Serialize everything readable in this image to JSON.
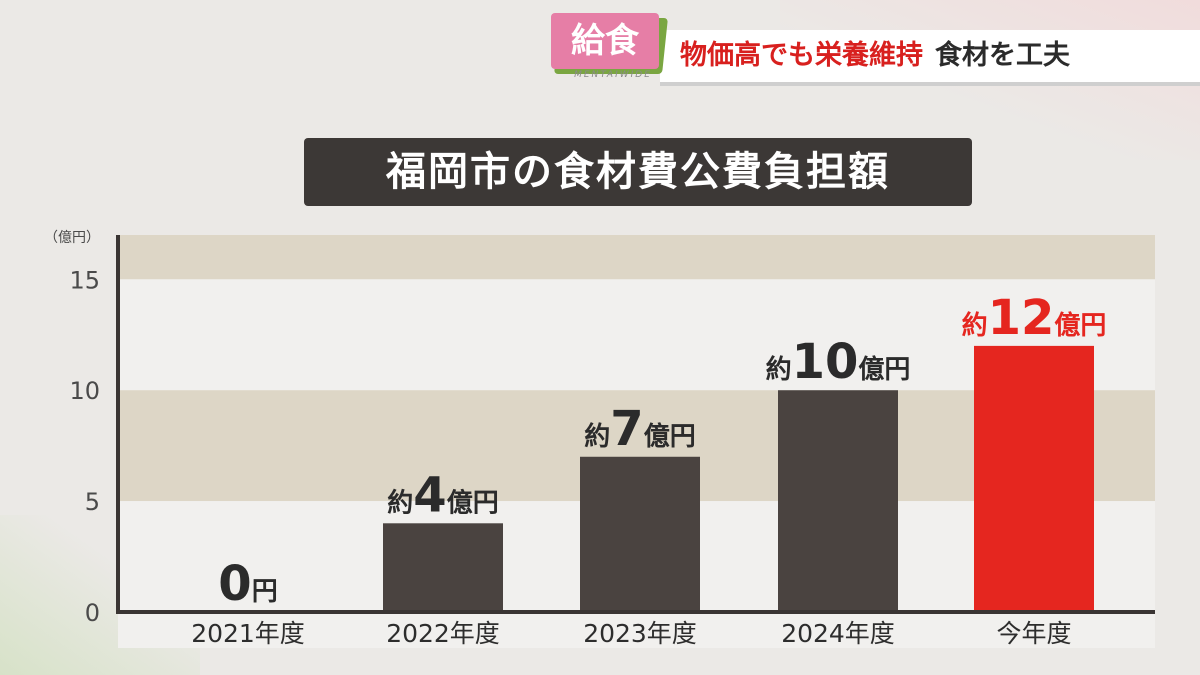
{
  "header": {
    "tag": "給食",
    "tag_sub": "MENTAIWIDE",
    "headline_red": "物価高でも栄養維持",
    "headline_dark": "食材を工夫"
  },
  "colors": {
    "bar": "#4a4340",
    "highlight": "#e5261f",
    "band_dark": "#ddd6c6",
    "band_light": "#f1f0ee"
  },
  "chart_data": {
    "type": "bar",
    "title": "福岡市の食材費公費負担額",
    "ylabel": "（億円）",
    "ylim": [
      0,
      17
    ],
    "yticks": [
      0,
      5,
      10,
      15
    ],
    "categories": [
      "2021年度",
      "2022年度",
      "2023年度",
      "2024年度",
      "今年度"
    ],
    "values": [
      0,
      4,
      7,
      10,
      12
    ],
    "highlight_index": 4,
    "data_labels": [
      {
        "prefix": "",
        "number": "0",
        "suffix": "円"
      },
      {
        "prefix": "約",
        "number": "4",
        "suffix": "億円"
      },
      {
        "prefix": "約",
        "number": "7",
        "suffix": "億円"
      },
      {
        "prefix": "約",
        "number": "10",
        "suffix": "億円"
      },
      {
        "prefix": "約",
        "number": "12",
        "suffix": "億円"
      }
    ]
  }
}
